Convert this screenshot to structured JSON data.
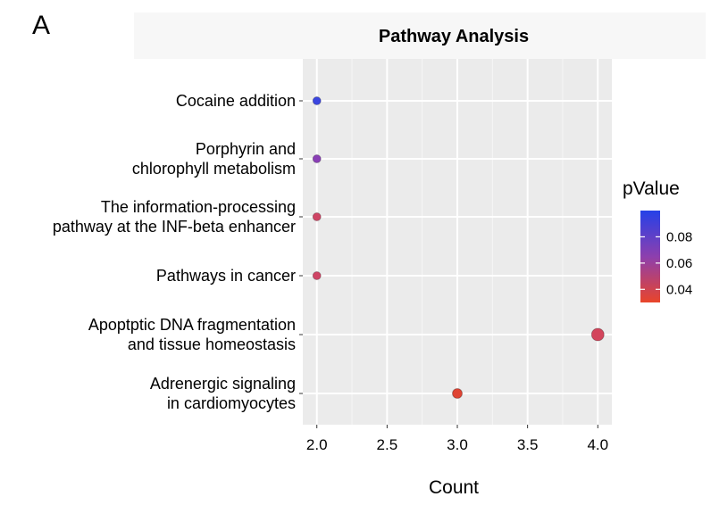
{
  "panel_label": "A",
  "chart_data": {
    "type": "scatter",
    "title": "Pathway Analysis",
    "xlabel": "Count",
    "ylabel": "",
    "xlim": [
      1.9,
      4.1
    ],
    "x_ticks": [
      "2.0",
      "2.5",
      "3.0",
      "3.5",
      "4.0"
    ],
    "categories": [
      [
        "Cocaine addition"
      ],
      [
        "Porphyrin and",
        "chlorophyll metabolism"
      ],
      [
        "The information-processing",
        "pathway at the INF-beta enhancer"
      ],
      [
        "Pathways in cancer"
      ],
      [
        "Apoptptic DNA fragmentation",
        "and tissue homeostasis"
      ],
      [
        "Adrenergic signaling",
        "in cardiomyocytes"
      ]
    ],
    "points": [
      {
        "category": 0,
        "x": 2,
        "pvalue": 0.097,
        "color": "#3b46e0"
      },
      {
        "category": 1,
        "x": 2,
        "pvalue": 0.072,
        "color": "#8a3fb6"
      },
      {
        "category": 2,
        "x": 2,
        "pvalue": 0.048,
        "color": "#cf4565"
      },
      {
        "category": 3,
        "x": 2,
        "pvalue": 0.048,
        "color": "#cf4565"
      },
      {
        "category": 4,
        "x": 4,
        "pvalue": 0.045,
        "color": "#d3455c"
      },
      {
        "category": 5,
        "x": 3,
        "pvalue": 0.035,
        "color": "#df4433"
      }
    ],
    "legend": {
      "title": "pValue",
      "position": "right",
      "ticks": [
        "0.08",
        "0.06",
        "0.04"
      ],
      "tick_values": [
        0.08,
        0.06,
        0.04
      ],
      "range": [
        0.03,
        0.1
      ],
      "color_high": "#2541e8",
      "color_mid": "#8d3fae",
      "color_low": "#e9452a"
    },
    "grid": true,
    "background": "#ebebeb"
  }
}
